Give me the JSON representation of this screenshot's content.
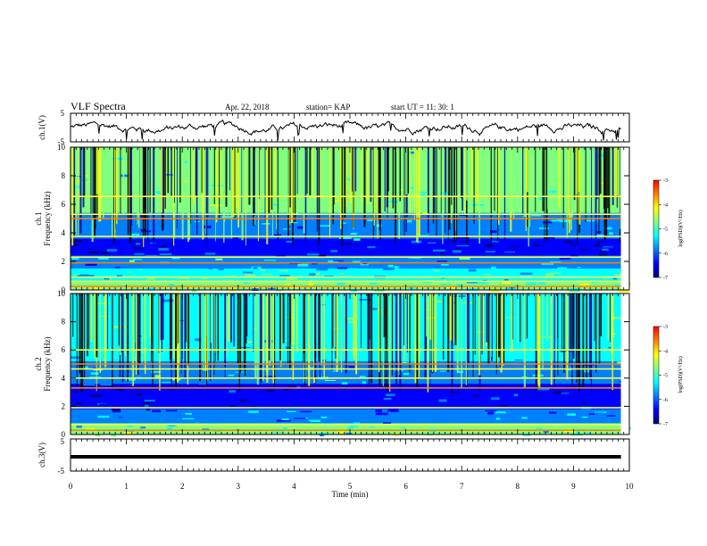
{
  "header": {
    "title": "VLF Spectra",
    "date": "Apr. 22, 2018",
    "station": "station= KAP",
    "start_time": "start  UT =   11: 30: 1"
  },
  "chart_data": [
    {
      "type": "line",
      "name": "ch1-voltage",
      "ylabel": "ch.1(V)",
      "ylim": [
        -5,
        5
      ],
      "yticks": [
        "5",
        "-5"
      ],
      "xlim": [
        0,
        10
      ],
      "series_color": "#000000"
    },
    {
      "type": "heatmap",
      "name": "ch1-spectrogram",
      "ylabel": "ch.1\nFrequency (kHz)",
      "ylim": [
        0,
        10
      ],
      "yticks": [
        "0",
        "2",
        "4",
        "6",
        "8",
        "10"
      ],
      "xlim": [
        0,
        9.85
      ],
      "colorbar": {
        "range": [
          -7,
          -3
        ],
        "ticks": [
          "-3",
          "-4",
          "-5",
          "-6",
          "-7"
        ],
        "label": "log(PSD)(V²/Hz)"
      },
      "bands_khz": [
        {
          "from": 0.0,
          "to": 0.6,
          "level": -4.8
        },
        {
          "from": 0.6,
          "to": 1.5,
          "level": -5.2
        },
        {
          "from": 1.5,
          "to": 2.4,
          "level": -5.6
        },
        {
          "from": 2.4,
          "to": 3.6,
          "level": -6.4
        },
        {
          "from": 3.6,
          "to": 5.4,
          "level": -5.8
        },
        {
          "from": 5.4,
          "to": 10.0,
          "level": -5.0
        }
      ],
      "lines_khz": [
        0.25,
        0.6,
        0.9,
        1.9,
        2.3,
        3.75,
        5.0,
        5.3,
        6.55
      ]
    },
    {
      "type": "heatmap",
      "name": "ch2-spectrogram",
      "ylabel": "ch.2\nFrequency (kHz)",
      "ylim": [
        0,
        10
      ],
      "yticks": [
        "0",
        "2",
        "4",
        "6",
        "8",
        "10"
      ],
      "xlim": [
        0,
        9.85
      ],
      "colorbar": {
        "range": [
          -7,
          -3
        ],
        "ticks": [
          "-3",
          "-4",
          "-5",
          "-6",
          "-7"
        ],
        "label": "log(PSD)(V²/Hz)"
      },
      "bands_khz": [
        {
          "from": 0.0,
          "to": 0.8,
          "level": -5.0
        },
        {
          "from": 0.8,
          "to": 1.8,
          "level": -5.9
        },
        {
          "from": 1.8,
          "to": 3.6,
          "level": -6.6
        },
        {
          "from": 3.6,
          "to": 5.2,
          "level": -5.6
        },
        {
          "from": 5.2,
          "to": 10.0,
          "level": -5.2
        }
      ],
      "lines_khz": [
        0.3,
        0.7,
        1.9,
        3.3,
        4.0,
        4.65,
        5.0,
        6.0
      ]
    },
    {
      "type": "line",
      "name": "ch3-voltage",
      "ylabel": "ch.3(V)",
      "ylim": [
        -5,
        5
      ],
      "yticks": [
        "5",
        "-5"
      ],
      "xlim": [
        0,
        10
      ],
      "series": [
        {
          "x": [
            0,
            9.85
          ],
          "y": [
            0,
            0
          ]
        }
      ]
    }
  ],
  "x_axis": {
    "label": "Time (min)",
    "range": [
      0,
      10
    ],
    "ticks": [
      "0",
      "1",
      "2",
      "3",
      "4",
      "5",
      "6",
      "7",
      "8",
      "9",
      "10"
    ]
  },
  "colors": {
    "colormap": [
      "#000080",
      "#0000ff",
      "#0080ff",
      "#00ffff",
      "#80ff80",
      "#ffff00",
      "#ff8000",
      "#ff0000",
      "#ffffff"
    ]
  }
}
